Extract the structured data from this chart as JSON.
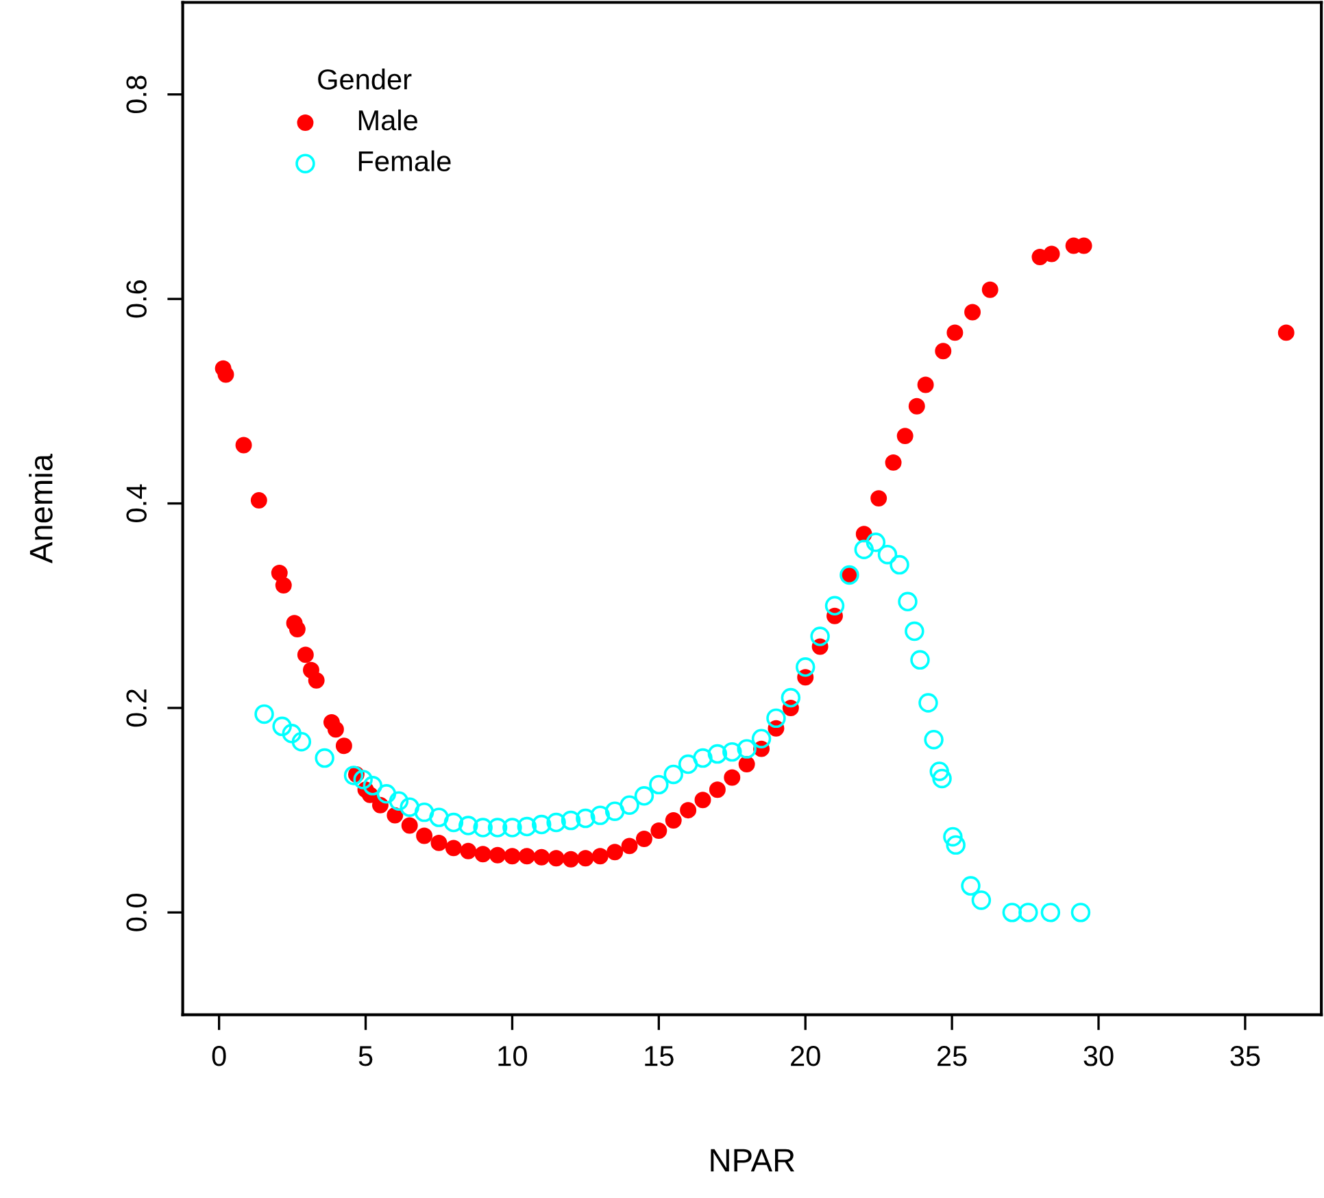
{
  "chart_data": {
    "type": "scatter",
    "xlabel": "NPAR",
    "ylabel": "Anemia",
    "legend_title": "Gender",
    "legend": "top left",
    "grid": false,
    "marker": "circle",
    "xlim": [
      -1.24,
      37.6
    ],
    "ylim": [
      -0.1,
      0.89
    ],
    "xticks": [
      0,
      5,
      10,
      15,
      20,
      25,
      30,
      35
    ],
    "yticks": [
      {
        "value": 0,
        "label": "0.0"
      },
      {
        "value": 0.2,
        "label": "0.2"
      },
      {
        "value": 0.4,
        "label": "0.4"
      },
      {
        "value": 0.6,
        "label": "0.6"
      },
      {
        "value": 0.8,
        "label": "0.8"
      }
    ],
    "series": [
      {
        "name": "Male",
        "color": "#ff0000",
        "x": [
          0.14,
          0.23,
          0.84,
          1.36,
          2.06,
          2.2,
          2.57,
          2.67,
          2.95,
          3.14,
          3.32,
          3.84,
          3.98,
          4.26,
          4.68,
          5,
          5.15,
          5.5,
          6,
          6.5,
          7,
          7.5,
          8,
          8.5,
          9,
          9.5,
          10,
          10.5,
          11,
          11.5,
          12,
          12.5,
          13,
          13.5,
          14,
          14.5,
          15,
          15.5,
          16,
          16.5,
          17,
          17.5,
          18,
          18.5,
          19,
          19.5,
          20,
          20.5,
          21,
          21.5,
          22,
          22.5,
          23,
          23.4,
          23.8,
          24.1,
          24.7,
          25.1,
          25.7,
          26.3,
          28.0,
          28.4,
          29.15,
          29.5,
          36.4
        ],
        "values": [
          0.532,
          0.526,
          0.457,
          0.403,
          0.332,
          0.32,
          0.283,
          0.277,
          0.252,
          0.237,
          0.227,
          0.186,
          0.179,
          0.163,
          0.135,
          0.12,
          0.115,
          0.105,
          0.095,
          0.085,
          0.075,
          0.068,
          0.063,
          0.06,
          0.057,
          0.056,
          0.055,
          0.055,
          0.054,
          0.053,
          0.052,
          0.053,
          0.055,
          0.059,
          0.065,
          0.072,
          0.08,
          0.09,
          0.1,
          0.11,
          0.12,
          0.132,
          0.145,
          0.16,
          0.18,
          0.2,
          0.23,
          0.26,
          0.29,
          0.33,
          0.37,
          0.405,
          0.44,
          0.466,
          0.495,
          0.516,
          0.549,
          0.567,
          0.587,
          0.609,
          0.641,
          0.644,
          0.652,
          0.652,
          0.567
        ]
      },
      {
        "name": "Female",
        "color": "#00ffff",
        "x": [
          1.54,
          2.15,
          2.48,
          2.81,
          3.6,
          4.59,
          4.91,
          5.24,
          5.71,
          6.13,
          6.5,
          7,
          7.5,
          8,
          8.5,
          9,
          9.5,
          10,
          10.5,
          11,
          11.5,
          12,
          12.5,
          13,
          13.5,
          14,
          14.5,
          15,
          15.5,
          16,
          16.5,
          17,
          17.5,
          18,
          18.5,
          19,
          19.5,
          20,
          20.5,
          21,
          21.5,
          22,
          22.4,
          22.8,
          23.21,
          23.49,
          23.72,
          23.91,
          24.19,
          24.38,
          24.57,
          24.66,
          25.03,
          25.13,
          25.64,
          26.0,
          27.05,
          27.6,
          28.36,
          29.39
        ],
        "values": [
          0.194,
          0.182,
          0.175,
          0.167,
          0.151,
          0.134,
          0.13,
          0.124,
          0.116,
          0.109,
          0.103,
          0.098,
          0.093,
          0.088,
          0.085,
          0.083,
          0.083,
          0.083,
          0.084,
          0.086,
          0.088,
          0.09,
          0.092,
          0.095,
          0.099,
          0.105,
          0.114,
          0.125,
          0.135,
          0.145,
          0.151,
          0.155,
          0.157,
          0.16,
          0.17,
          0.19,
          0.21,
          0.24,
          0.27,
          0.3,
          0.33,
          0.355,
          0.362,
          0.35,
          0.34,
          0.304,
          0.275,
          0.247,
          0.205,
          0.169,
          0.138,
          0.131,
          0.074,
          0.066,
          0.026,
          0.012,
          0,
          0,
          0,
          0
        ]
      }
    ]
  }
}
